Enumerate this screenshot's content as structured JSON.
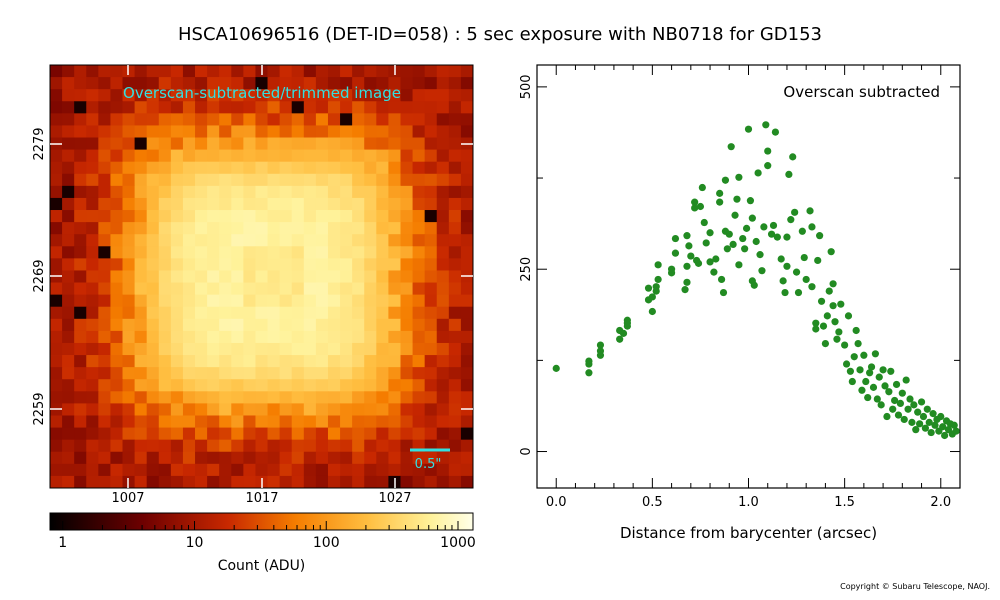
{
  "title": "HSCA10696516 (DET-ID=058) :  5 sec exposure with NB0718 for GD153",
  "copyright": "Copyright © Subaru Telescope, NAOJ.",
  "image_panel": {
    "label": "Overscan-subtracted/trimmed image",
    "x_ticks": [
      "1007",
      "1017",
      "1027"
    ],
    "y_ticks": [
      "2279",
      "2269",
      "2259"
    ],
    "scale_bar_label": "0.5\"",
    "label_color": "#33e0e0"
  },
  "colorbar": {
    "ticks": [
      "1",
      "10",
      "100",
      "1000"
    ],
    "label": "Count (ADU)",
    "scale": "log",
    "range": [
      0.8,
      1300
    ]
  },
  "chart_data": {
    "type": "scatter",
    "annotation": "Overscan subtracted",
    "xlabel": "Distance from barycenter (arcsec)",
    "ylabel": "",
    "x_ticks": [
      "0.0",
      "0.5",
      "1.0",
      "1.5",
      "2.0"
    ],
    "y_ticks": [
      "0",
      "250",
      "500"
    ],
    "xlim": [
      -0.1,
      2.1
    ],
    "ylim": [
      -50,
      530
    ],
    "grid": false,
    "color": "#228b22",
    "points": [
      [
        0.0,
        114
      ],
      [
        0.17,
        124
      ],
      [
        0.17,
        108
      ],
      [
        0.17,
        120
      ],
      [
        0.23,
        138
      ],
      [
        0.23,
        146
      ],
      [
        0.23,
        132
      ],
      [
        0.33,
        154
      ],
      [
        0.33,
        166
      ],
      [
        0.35,
        162
      ],
      [
        0.37,
        172
      ],
      [
        0.37,
        180
      ],
      [
        0.37,
        176
      ],
      [
        0.48,
        224
      ],
      [
        0.48,
        208
      ],
      [
        0.5,
        212
      ],
      [
        0.5,
        192
      ],
      [
        0.52,
        226
      ],
      [
        0.52,
        220
      ],
      [
        0.53,
        256
      ],
      [
        0.53,
        236
      ],
      [
        0.6,
        250
      ],
      [
        0.6,
        245
      ],
      [
        0.62,
        292
      ],
      [
        0.62,
        272
      ],
      [
        0.67,
        222
      ],
      [
        0.68,
        232
      ],
      [
        0.68,
        254
      ],
      [
        0.68,
        296
      ],
      [
        0.69,
        282
      ],
      [
        0.7,
        268
      ],
      [
        0.72,
        334
      ],
      [
        0.72,
        342
      ],
      [
        0.73,
        262
      ],
      [
        0.74,
        258
      ],
      [
        0.75,
        336
      ],
      [
        0.76,
        362
      ],
      [
        0.77,
        314
      ],
      [
        0.78,
        286
      ],
      [
        0.8,
        300
      ],
      [
        0.8,
        260
      ],
      [
        0.82,
        246
      ],
      [
        0.83,
        264
      ],
      [
        0.85,
        342
      ],
      [
        0.85,
        354
      ],
      [
        0.86,
        236
      ],
      [
        0.87,
        218
      ],
      [
        0.88,
        372
      ],
      [
        0.88,
        302
      ],
      [
        0.89,
        278
      ],
      [
        0.9,
        298
      ],
      [
        0.91,
        418
      ],
      [
        0.92,
        284
      ],
      [
        0.93,
        324
      ],
      [
        0.94,
        346
      ],
      [
        0.95,
        256
      ],
      [
        0.95,
        376
      ],
      [
        0.97,
        292
      ],
      [
        0.98,
        278
      ],
      [
        0.99,
        306
      ],
      [
        1.0,
        442
      ],
      [
        1.01,
        344
      ],
      [
        1.02,
        320
      ],
      [
        1.02,
        234
      ],
      [
        1.03,
        228
      ],
      [
        1.04,
        288
      ],
      [
        1.05,
        382
      ],
      [
        1.06,
        270
      ],
      [
        1.07,
        248
      ],
      [
        1.08,
        308
      ],
      [
        1.09,
        448
      ],
      [
        1.1,
        412
      ],
      [
        1.1,
        392
      ],
      [
        1.12,
        298
      ],
      [
        1.13,
        310
      ],
      [
        1.14,
        438
      ],
      [
        1.15,
        294
      ],
      [
        1.17,
        264
      ],
      [
        1.18,
        234
      ],
      [
        1.19,
        218
      ],
      [
        1.2,
        254
      ],
      [
        1.2,
        294
      ],
      [
        1.21,
        380
      ],
      [
        1.22,
        318
      ],
      [
        1.23,
        404
      ],
      [
        1.24,
        328
      ],
      [
        1.25,
        246
      ],
      [
        1.26,
        218
      ],
      [
        1.28,
        302
      ],
      [
        1.29,
        266
      ],
      [
        1.3,
        236
      ],
      [
        1.32,
        330
      ],
      [
        1.33,
        308
      ],
      [
        1.33,
        226
      ],
      [
        1.35,
        176
      ],
      [
        1.35,
        168
      ],
      [
        1.36,
        262
      ],
      [
        1.37,
        296
      ],
      [
        1.38,
        206
      ],
      [
        1.39,
        172
      ],
      [
        1.4,
        148
      ],
      [
        1.41,
        186
      ],
      [
        1.42,
        220
      ],
      [
        1.43,
        274
      ],
      [
        1.44,
        200
      ],
      [
        1.44,
        230
      ],
      [
        1.45,
        178
      ],
      [
        1.46,
        154
      ],
      [
        1.47,
        164
      ],
      [
        1.48,
        202
      ],
      [
        1.5,
        146
      ],
      [
        1.51,
        120
      ],
      [
        1.52,
        186
      ],
      [
        1.53,
        110
      ],
      [
        1.54,
        96
      ],
      [
        1.55,
        130
      ],
      [
        1.56,
        166
      ],
      [
        1.57,
        148
      ],
      [
        1.58,
        112
      ],
      [
        1.59,
        84
      ],
      [
        1.6,
        132
      ],
      [
        1.61,
        96
      ],
      [
        1.62,
        74
      ],
      [
        1.63,
        108
      ],
      [
        1.64,
        116
      ],
      [
        1.65,
        88
      ],
      [
        1.66,
        134
      ],
      [
        1.67,
        72
      ],
      [
        1.68,
        102
      ],
      [
        1.69,
        64
      ],
      [
        1.7,
        112
      ],
      [
        1.71,
        90
      ],
      [
        1.72,
        48
      ],
      [
        1.73,
        82
      ],
      [
        1.74,
        110
      ],
      [
        1.75,
        58
      ],
      [
        1.76,
        70
      ],
      [
        1.77,
        92
      ],
      [
        1.78,
        50
      ],
      [
        1.79,
        66
      ],
      [
        1.8,
        80
      ],
      [
        1.81,
        44
      ],
      [
        1.82,
        98
      ],
      [
        1.83,
        58
      ],
      [
        1.84,
        72
      ],
      [
        1.85,
        40
      ],
      [
        1.86,
        64
      ],
      [
        1.87,
        30
      ],
      [
        1.88,
        54
      ],
      [
        1.89,
        38
      ],
      [
        1.9,
        68
      ],
      [
        1.91,
        48
      ],
      [
        1.92,
        32
      ],
      [
        1.93,
        58
      ],
      [
        1.94,
        40
      ],
      [
        1.95,
        26
      ],
      [
        1.96,
        52
      ],
      [
        1.97,
        36
      ],
      [
        1.98,
        44
      ],
      [
        1.99,
        28
      ],
      [
        2.0,
        48
      ],
      [
        2.01,
        34
      ],
      [
        2.02,
        22
      ],
      [
        2.03,
        42
      ],
      [
        2.04,
        30
      ],
      [
        2.05,
        38
      ],
      [
        2.06,
        24
      ],
      [
        2.07,
        36
      ],
      [
        2.08,
        28
      ]
    ]
  }
}
